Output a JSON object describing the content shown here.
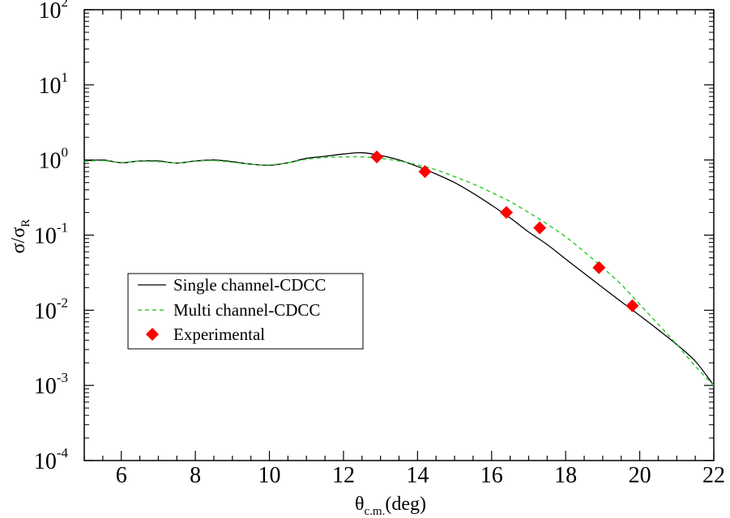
{
  "chart_data": {
    "type": "line",
    "title": "",
    "xlabel": {
      "symbol": "θ",
      "subscript": "c.m.",
      "unit": "(deg)"
    },
    "ylabel": {
      "base": "σ/σ",
      "subscript": "R"
    },
    "xlim": [
      5,
      22
    ],
    "ylim": [
      0.0001,
      100
    ],
    "yscale": "log",
    "grid": false,
    "legend_position": "center-left",
    "x_ticks": [
      {
        "value": 6,
        "label": "6"
      },
      {
        "value": 8,
        "label": "8"
      },
      {
        "value": 10,
        "label": "10"
      },
      {
        "value": 12,
        "label": "12"
      },
      {
        "value": 14,
        "label": "14"
      },
      {
        "value": 16,
        "label": "16"
      },
      {
        "value": 18,
        "label": "18"
      },
      {
        "value": 20,
        "label": "20"
      },
      {
        "value": 22,
        "label": "22"
      }
    ],
    "y_ticks": [
      {
        "value": 100,
        "base": "10",
        "exp": "2"
      },
      {
        "value": 10,
        "base": "10",
        "exp": "1"
      },
      {
        "value": 1,
        "base": "10",
        "exp": "0"
      },
      {
        "value": 0.1,
        "base": "10",
        "exp": "-1"
      },
      {
        "value": 0.01,
        "base": "10",
        "exp": "-2"
      },
      {
        "value": 0.001,
        "base": "10",
        "exp": "-3"
      },
      {
        "value": 0.0001,
        "base": "10",
        "exp": "-4"
      }
    ],
    "series": [
      {
        "name": "Single channel-CDCC",
        "style": "solid",
        "color": "#000000",
        "x": [
          5.0,
          5.5,
          6.0,
          6.5,
          7.0,
          7.5,
          8.0,
          8.5,
          9.0,
          9.5,
          10.0,
          10.5,
          11.0,
          11.5,
          12.0,
          12.5,
          13.0,
          13.5,
          14.0,
          14.5,
          15.0,
          15.5,
          16.0,
          16.5,
          17.0,
          17.5,
          18.0,
          18.5,
          19.0,
          19.5,
          20.0,
          20.5,
          21.0,
          21.5,
          22.0
        ],
        "values": [
          0.97,
          1.0,
          0.92,
          0.97,
          0.97,
          0.91,
          0.97,
          1.0,
          0.95,
          0.88,
          0.85,
          0.92,
          1.05,
          1.12,
          1.2,
          1.25,
          1.15,
          1.0,
          0.82,
          0.65,
          0.5,
          0.36,
          0.25,
          0.17,
          0.11,
          0.075,
          0.048,
          0.031,
          0.02,
          0.013,
          0.0085,
          0.0055,
          0.0035,
          0.0021,
          0.001
        ]
      },
      {
        "name": "Multi channel-CDCC",
        "style": "dashed",
        "color": "#33cc33",
        "x": [
          5.0,
          5.5,
          6.0,
          6.5,
          7.0,
          7.5,
          8.0,
          8.5,
          9.0,
          9.5,
          10.0,
          10.5,
          11.0,
          11.5,
          12.0,
          12.5,
          13.0,
          13.5,
          14.0,
          14.5,
          15.0,
          15.5,
          16.0,
          16.5,
          17.0,
          17.5,
          18.0,
          18.5,
          19.0,
          19.5,
          20.0,
          20.5,
          21.0,
          21.5,
          22.0
        ],
        "values": [
          0.96,
          0.98,
          0.93,
          0.96,
          0.95,
          0.91,
          0.96,
          0.98,
          0.93,
          0.88,
          0.86,
          0.92,
          1.02,
          1.08,
          1.1,
          1.1,
          1.05,
          0.97,
          0.86,
          0.74,
          0.6,
          0.48,
          0.37,
          0.28,
          0.2,
          0.14,
          0.095,
          0.06,
          0.037,
          0.022,
          0.012,
          0.0065,
          0.0035,
          0.0018,
          0.001
        ]
      }
    ],
    "points": {
      "name": "Experimental",
      "color": "#ff0000",
      "marker": "diamond",
      "x": [
        12.9,
        14.2,
        16.4,
        17.3,
        18.9,
        19.8
      ],
      "values": [
        1.1,
        0.7,
        0.2,
        0.125,
        0.037,
        0.0115
      ]
    }
  }
}
